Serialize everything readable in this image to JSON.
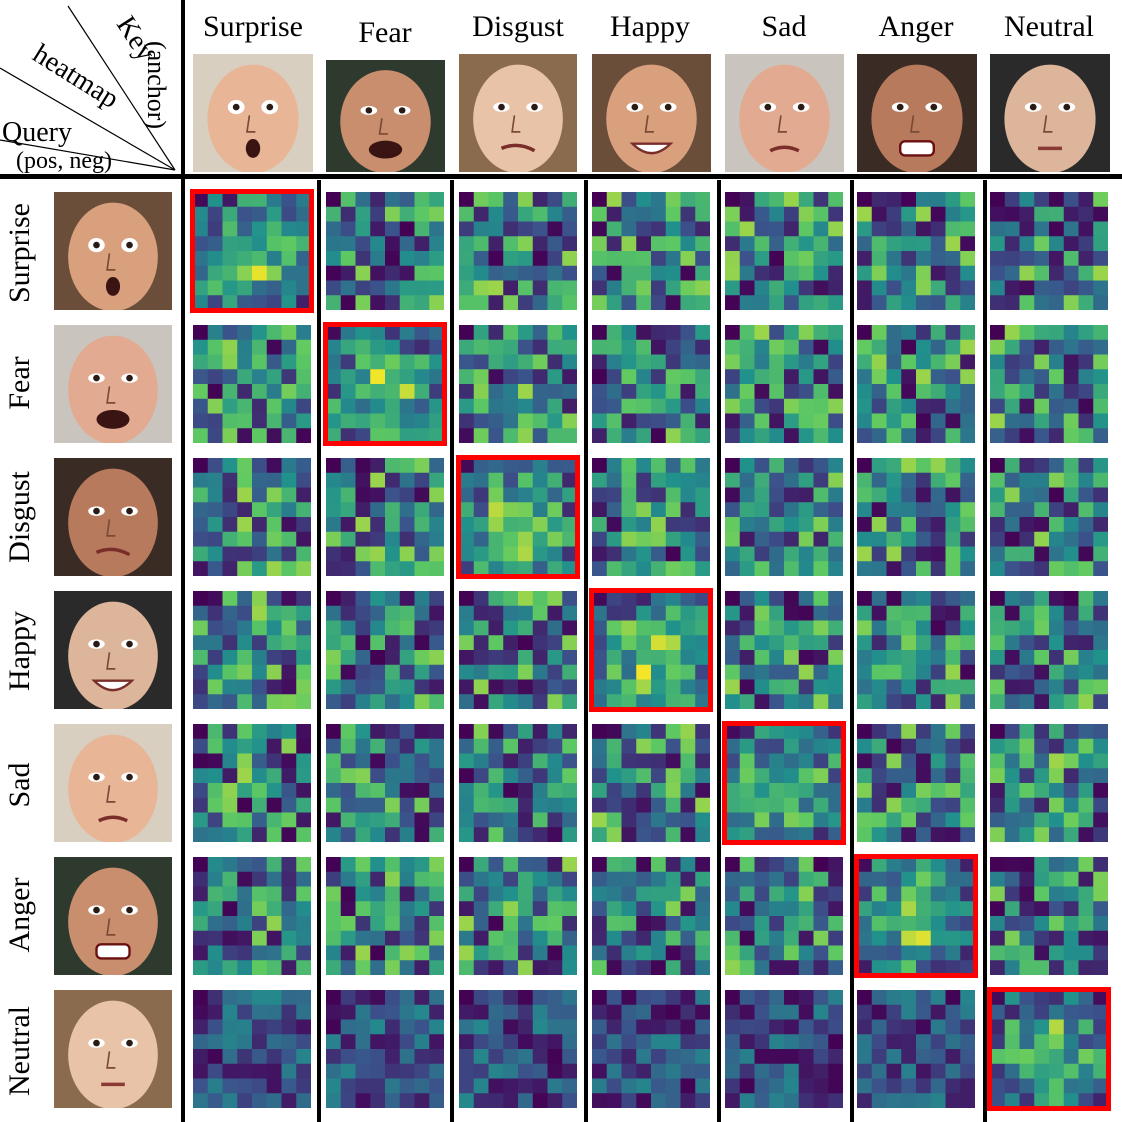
{
  "corner": {
    "key": "Key",
    "anchor": "(anchor)",
    "heatmap": "heatmap",
    "query": "Query",
    "pos_neg": "(pos, neg)"
  },
  "columns": [
    "Surprise",
    "Fear",
    "Disgust",
    "Happy",
    "Sad",
    "Anger",
    "Neutral"
  ],
  "rows": [
    "Surprise",
    "Fear",
    "Disgust",
    "Happy",
    "Sad",
    "Anger",
    "Neutral"
  ],
  "highlight": "diagonal",
  "colors": {
    "highlight": "#ff0000",
    "divider": "#000000",
    "colormap": [
      "#440154",
      "#3b528b",
      "#21918c",
      "#5ec962",
      "#fde725"
    ]
  }
}
